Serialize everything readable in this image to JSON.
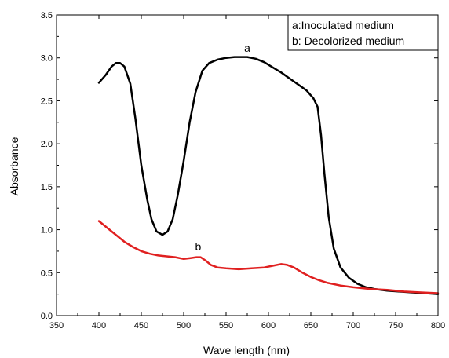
{
  "chart_data": {
    "type": "line",
    "xlabel": "Wave length (nm)",
    "ylabel": "Absorbance",
    "xlim": [
      350,
      800
    ],
    "ylim": [
      0.0,
      3.5
    ],
    "xticks": [
      "350",
      "400",
      "450",
      "500",
      "550",
      "600",
      "650",
      "700",
      "750",
      "800"
    ],
    "yticks": [
      "0.0",
      "0.5",
      "1.0",
      "1.5",
      "2.0",
      "2.5",
      "3.0",
      "3.5"
    ],
    "grid": false,
    "legend_position": "top-right",
    "legend": [
      "a:Inoculated medium",
      "b: Decolorized medium"
    ],
    "series": [
      {
        "label": "a",
        "color": "#000000",
        "points": [
          [
            400,
            2.71
          ],
          [
            408,
            2.8
          ],
          [
            415,
            2.9
          ],
          [
            420,
            2.94
          ],
          [
            425,
            2.94
          ],
          [
            430,
            2.9
          ],
          [
            437,
            2.7
          ],
          [
            443,
            2.3
          ],
          [
            450,
            1.75
          ],
          [
            457,
            1.35
          ],
          [
            462,
            1.12
          ],
          [
            468,
            0.98
          ],
          [
            475,
            0.94
          ],
          [
            481,
            0.98
          ],
          [
            487,
            1.12
          ],
          [
            493,
            1.4
          ],
          [
            500,
            1.8
          ],
          [
            507,
            2.25
          ],
          [
            514,
            2.6
          ],
          [
            522,
            2.85
          ],
          [
            530,
            2.94
          ],
          [
            540,
            2.98
          ],
          [
            550,
            3.0
          ],
          [
            560,
            3.01
          ],
          [
            570,
            3.01
          ],
          [
            575,
            3.01
          ],
          [
            585,
            2.99
          ],
          [
            595,
            2.95
          ],
          [
            605,
            2.89
          ],
          [
            615,
            2.83
          ],
          [
            625,
            2.76
          ],
          [
            635,
            2.69
          ],
          [
            645,
            2.62
          ],
          [
            653,
            2.53
          ],
          [
            658,
            2.43
          ],
          [
            662,
            2.1
          ],
          [
            666,
            1.65
          ],
          [
            671,
            1.15
          ],
          [
            677,
            0.78
          ],
          [
            685,
            0.56
          ],
          [
            695,
            0.44
          ],
          [
            705,
            0.37
          ],
          [
            715,
            0.33
          ],
          [
            725,
            0.31
          ],
          [
            740,
            0.29
          ],
          [
            755,
            0.28
          ],
          [
            770,
            0.27
          ],
          [
            785,
            0.26
          ],
          [
            800,
            0.25
          ]
        ]
      },
      {
        "label": "b",
        "color": "#e02020",
        "points": [
          [
            400,
            1.1
          ],
          [
            410,
            1.02
          ],
          [
            420,
            0.94
          ],
          [
            430,
            0.86
          ],
          [
            440,
            0.8
          ],
          [
            450,
            0.75
          ],
          [
            460,
            0.72
          ],
          [
            470,
            0.7
          ],
          [
            480,
            0.69
          ],
          [
            490,
            0.68
          ],
          [
            500,
            0.66
          ],
          [
            508,
            0.67
          ],
          [
            515,
            0.68
          ],
          [
            520,
            0.68
          ],
          [
            526,
            0.64
          ],
          [
            532,
            0.59
          ],
          [
            540,
            0.56
          ],
          [
            550,
            0.55
          ],
          [
            565,
            0.54
          ],
          [
            580,
            0.55
          ],
          [
            595,
            0.56
          ],
          [
            605,
            0.58
          ],
          [
            615,
            0.6
          ],
          [
            622,
            0.59
          ],
          [
            630,
            0.56
          ],
          [
            640,
            0.5
          ],
          [
            650,
            0.45
          ],
          [
            660,
            0.41
          ],
          [
            670,
            0.38
          ],
          [
            685,
            0.35
          ],
          [
            700,
            0.33
          ],
          [
            720,
            0.31
          ],
          [
            740,
            0.3
          ],
          [
            760,
            0.28
          ],
          [
            780,
            0.27
          ],
          [
            800,
            0.26
          ]
        ]
      }
    ],
    "annotations": [
      {
        "text": "a",
        "x": 575,
        "y": 3.07
      },
      {
        "text": "b",
        "x": 517,
        "y": 0.76
      }
    ]
  }
}
